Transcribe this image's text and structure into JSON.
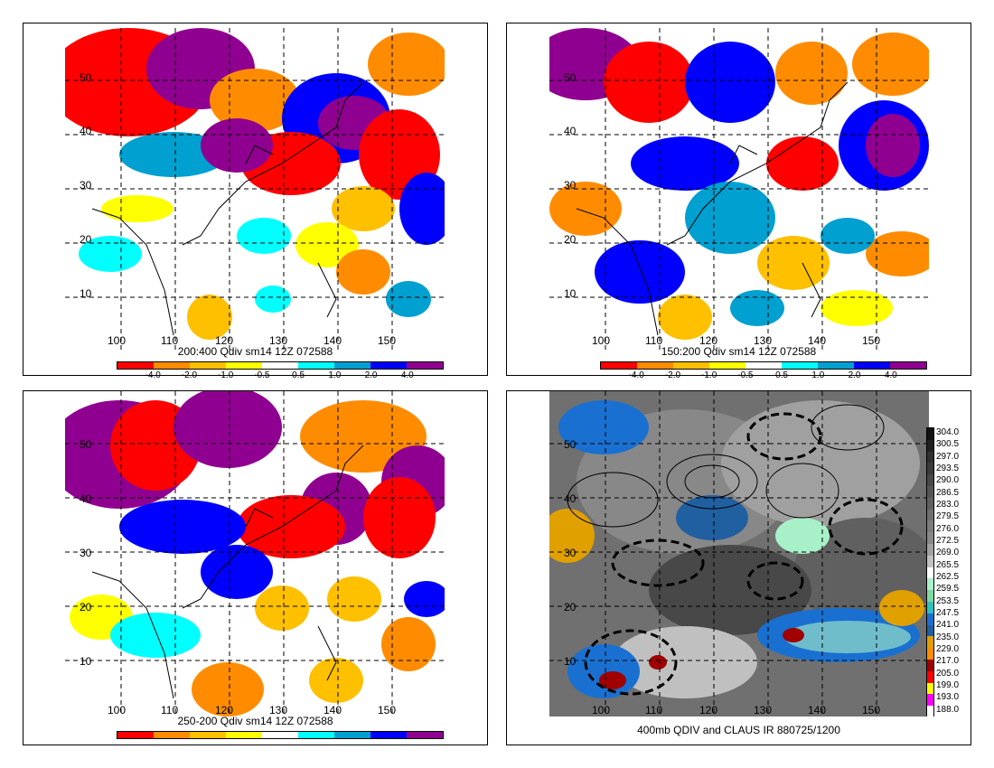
{
  "panels": [
    {
      "id": "p1",
      "caption": "200:400 Qdiv sm14 12Z 072588",
      "lon_labels": [
        "100",
        "110",
        "120",
        "130",
        "140",
        "150"
      ],
      "lat_labels": [
        "50",
        "40",
        "30",
        "20",
        "10"
      ],
      "colorbar_ticks": [
        "-4.0",
        "-2.0",
        "-1.0",
        "-0.5",
        "0.5",
        "1.0",
        "2.0",
        "4.0"
      ]
    },
    {
      "id": "p2",
      "caption": "150:200 Qdiv sm14 12Z 072588",
      "lon_labels": [
        "100",
        "110",
        "120",
        "130",
        "140",
        "150"
      ],
      "lat_labels": [
        "50",
        "40",
        "30",
        "20",
        "10"
      ],
      "colorbar_ticks": [
        "-4.0",
        "-2.0",
        "-1.0",
        "-0.5",
        "0.5",
        "1.0",
        "2.0",
        "4.0"
      ]
    },
    {
      "id": "p3",
      "caption": "250-200 Qdiv sm14 12Z 072588",
      "lon_labels": [
        "100",
        "110",
        "120",
        "130",
        "140",
        "150"
      ],
      "lat_labels": [
        "50",
        "40",
        "30",
        "20",
        "10"
      ],
      "colorbar_ticks": []
    },
    {
      "id": "p4",
      "caption": "400mb QDIV and CLAUS IR 880725/1200",
      "lon_labels": [
        "100",
        "110",
        "120",
        "130",
        "140",
        "150"
      ],
      "lat_labels": [
        "50",
        "40",
        "30",
        "20",
        "10"
      ],
      "ir_scale": [
        "304.0",
        "300.5",
        "297.0",
        "293.5",
        "290.0",
        "286.5",
        "283.0",
        "279.5",
        "276.0",
        "272.5",
        "269.0",
        "265.5",
        "262.5",
        "259.5",
        "253.5",
        "247.5",
        "241.0",
        "235.0",
        "229.0",
        "217.0",
        "205.0",
        "199.0",
        "193.0",
        "188.0"
      ]
    }
  ],
  "qdiv_colors": [
    "#ff0000",
    "#ff8c00",
    "#ffc000",
    "#ffff00",
    "#ffffff",
    "#00ffff",
    "#00a0d0",
    "#0000ff",
    "#900090"
  ],
  "ir_colors": [
    "#111111",
    "#202020",
    "#303030",
    "#3a3a3a",
    "#484848",
    "#555555",
    "#606060",
    "#707070",
    "#7c7c7c",
    "#888888",
    "#a0a0a0",
    "#c0c0c0",
    "#ffffff",
    "#a8f0c8",
    "#80d8a0",
    "#30c0c0",
    "#1a70d0",
    "#2060a0",
    "#e0a000",
    "#ff8c00",
    "#a00000",
    "#ff0000",
    "#ffff00",
    "#ff00ff",
    "#ffffff"
  ]
}
